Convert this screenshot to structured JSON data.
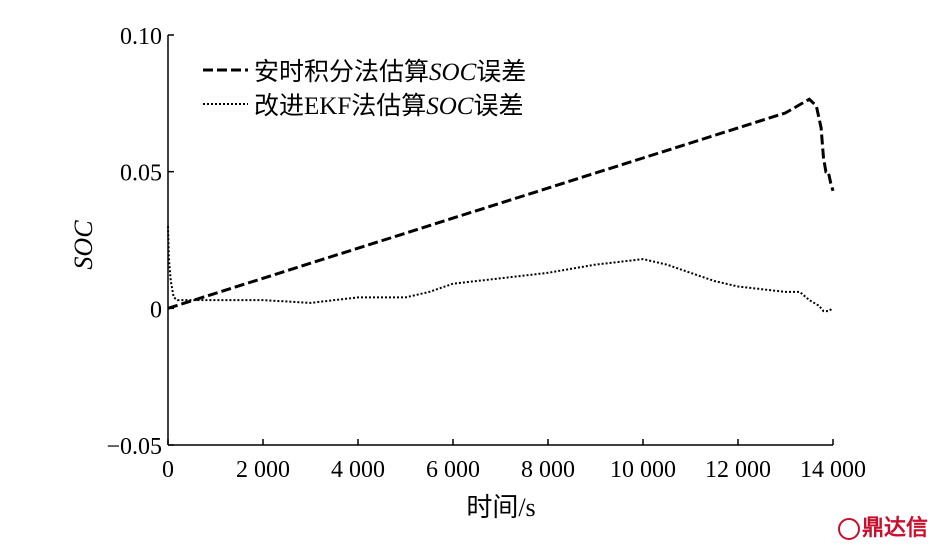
{
  "chart_data": {
    "type": "line",
    "title": "",
    "xlabel": "时间/s",
    "ylabel": "SOC",
    "xlim": [
      0,
      14000
    ],
    "ylim": [
      -0.05,
      0.1
    ],
    "xticks": [
      0,
      2000,
      4000,
      6000,
      8000,
      10000,
      12000,
      14000
    ],
    "xtick_labels": [
      "0",
      "2 000",
      "4 000",
      "6 000",
      "8 000",
      "10 000",
      "12 000",
      "14 000"
    ],
    "yticks": [
      -0.05,
      0,
      0.05,
      0.1
    ],
    "ytick_labels": [
      "−0.05",
      "0",
      "0.05",
      "0.10"
    ],
    "grid": false,
    "legend_position": "top-left",
    "series": [
      {
        "name": "安时积分法估算SOC误差",
        "name_parts": [
          "安时积分法估算",
          "SOC",
          "误差"
        ],
        "style": "dashed",
        "x": [
          0,
          1000,
          2000,
          3000,
          4000,
          5000,
          6000,
          7000,
          8000,
          9000,
          10000,
          11000,
          12000,
          13000,
          13500,
          13650,
          13750,
          13800,
          13850,
          13900,
          13950,
          14000
        ],
        "y": [
          0.0,
          0.0055,
          0.011,
          0.0165,
          0.022,
          0.0275,
          0.033,
          0.0385,
          0.044,
          0.0495,
          0.055,
          0.0605,
          0.066,
          0.0715,
          0.0765,
          0.074,
          0.066,
          0.055,
          0.05,
          0.05,
          0.046,
          0.043
        ]
      },
      {
        "name": "改进EKF法估算SOC误差",
        "name_parts": [
          "改进EKF法估算",
          "SOC",
          "误差"
        ],
        "style": "dotted",
        "x": [
          0,
          20,
          60,
          120,
          200,
          400,
          1000,
          2000,
          3000,
          4000,
          5000,
          5500,
          6000,
          7000,
          8000,
          9000,
          9500,
          10000,
          10500,
          11000,
          11500,
          12000,
          12500,
          13000,
          13300,
          13500,
          13700,
          13800,
          13900,
          14000
        ],
        "y": [
          0.03,
          0.018,
          0.01,
          0.004,
          0.003,
          0.003,
          0.003,
          0.003,
          0.002,
          0.004,
          0.004,
          0.006,
          0.009,
          0.011,
          0.013,
          0.016,
          0.017,
          0.018,
          0.016,
          0.013,
          0.01,
          0.008,
          0.007,
          0.006,
          0.006,
          0.003,
          0.001,
          -0.001,
          -0.001,
          0.0
        ]
      }
    ]
  },
  "watermark": {
    "text": "鼎达信"
  }
}
